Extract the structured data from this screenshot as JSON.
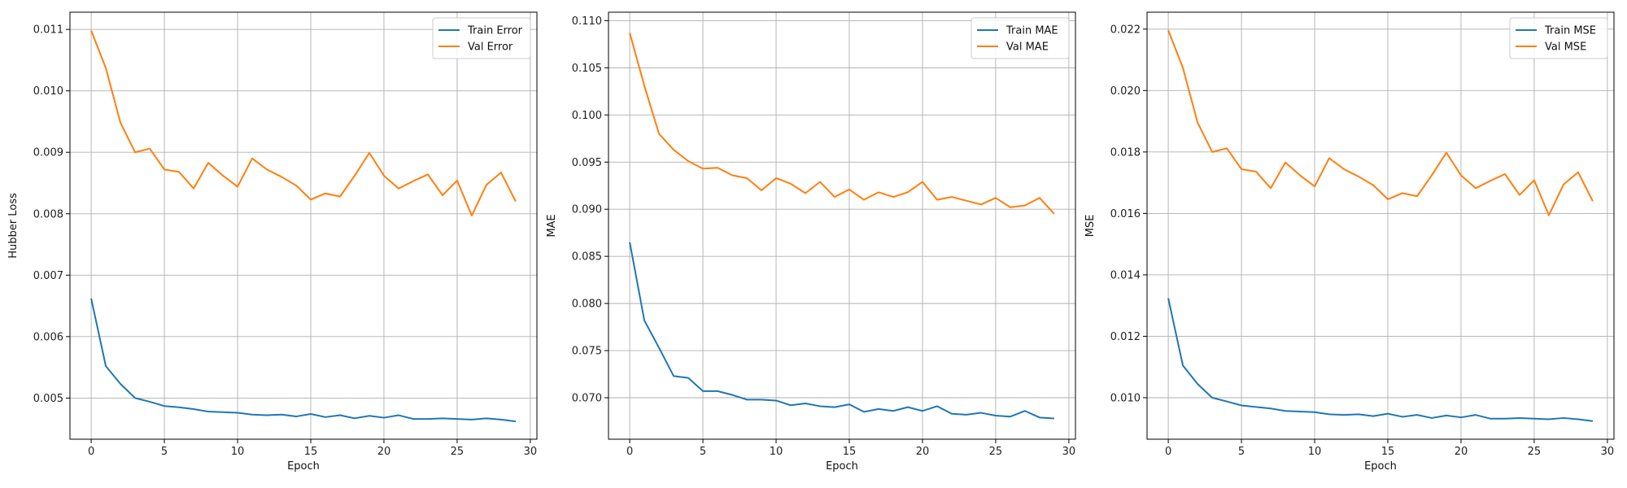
{
  "chart_data": [
    {
      "type": "line",
      "xlabel": "Epoch",
      "ylabel": "Hubber Loss",
      "x": [
        0,
        1,
        2,
        3,
        4,
        5,
        6,
        7,
        8,
        9,
        10,
        11,
        12,
        13,
        14,
        15,
        16,
        17,
        18,
        19,
        20,
        21,
        22,
        23,
        24,
        25,
        26,
        27,
        28,
        29
      ],
      "xlim": [
        -1.45,
        30.45
      ],
      "xticks": [
        0,
        5,
        10,
        15,
        20,
        25,
        30
      ],
      "ylim": [
        0.00433,
        0.01128
      ],
      "yticks": [
        0.005,
        0.006,
        0.007,
        0.008,
        0.009,
        0.01,
        0.011
      ],
      "ytick_labels": [
        "0.005",
        "0.006",
        "0.007",
        "0.008",
        "0.009",
        "0.010",
        "0.011"
      ],
      "grid": true,
      "legend_position": "top-right",
      "series": [
        {
          "name": "Train Error",
          "color": "#1f77b4",
          "values": [
            0.00662,
            0.00552,
            0.00523,
            0.005,
            0.00494,
            0.00487,
            0.00485,
            0.00482,
            0.00478,
            0.00477,
            0.00476,
            0.00473,
            0.00472,
            0.00473,
            0.0047,
            0.00474,
            0.00469,
            0.00472,
            0.00467,
            0.00471,
            0.00468,
            0.00472,
            0.00466,
            0.00466,
            0.00467,
            0.00466,
            0.00465,
            0.00467,
            0.00465,
            0.00462
          ]
        },
        {
          "name": "Val Error",
          "color": "#ff7f0e",
          "values": [
            0.01098,
            0.01037,
            0.00948,
            0.009,
            0.00906,
            0.00872,
            0.00868,
            0.00841,
            0.00883,
            0.00862,
            0.00844,
            0.0089,
            0.00872,
            0.0086,
            0.00846,
            0.00823,
            0.00833,
            0.00828,
            0.00862,
            0.00899,
            0.00862,
            0.00841,
            0.00853,
            0.00864,
            0.0083,
            0.00854,
            0.00797,
            0.00847,
            0.00867,
            0.0082
          ]
        }
      ]
    },
    {
      "type": "line",
      "xlabel": "Epoch",
      "ylabel": "MAE",
      "x": [
        0,
        1,
        2,
        3,
        4,
        5,
        6,
        7,
        8,
        9,
        10,
        11,
        12,
        13,
        14,
        15,
        16,
        17,
        18,
        19,
        20,
        21,
        22,
        23,
        24,
        25,
        26,
        27,
        28,
        29
      ],
      "xlim": [
        -1.45,
        30.45
      ],
      "xticks": [
        0,
        5,
        10,
        15,
        20,
        25,
        30
      ],
      "ylim": [
        0.0656,
        0.1109
      ],
      "yticks": [
        0.07,
        0.075,
        0.08,
        0.085,
        0.09,
        0.095,
        0.1,
        0.105,
        0.11
      ],
      "ytick_labels": [
        "0.070",
        "0.075",
        "0.080",
        "0.085",
        "0.090",
        "0.095",
        "0.100",
        "0.105",
        "0.110"
      ],
      "grid": true,
      "legend_position": "top-right",
      "series": [
        {
          "name": "Train MAE",
          "color": "#1f77b4",
          "values": [
            0.0865,
            0.0782,
            0.0753,
            0.0723,
            0.0721,
            0.0707,
            0.0707,
            0.0703,
            0.0698,
            0.0698,
            0.0697,
            0.0692,
            0.0694,
            0.0691,
            0.069,
            0.0693,
            0.0685,
            0.0688,
            0.0686,
            0.069,
            0.0686,
            0.0691,
            0.0683,
            0.0682,
            0.0684,
            0.0681,
            0.068,
            0.0686,
            0.0679,
            0.0678
          ]
        },
        {
          "name": "Val MAE",
          "color": "#ff7f0e",
          "values": [
            0.1087,
            0.1031,
            0.098,
            0.0963,
            0.0951,
            0.0943,
            0.0944,
            0.0936,
            0.0933,
            0.092,
            0.0933,
            0.0927,
            0.0917,
            0.0929,
            0.0913,
            0.0921,
            0.091,
            0.0918,
            0.0913,
            0.0918,
            0.0929,
            0.091,
            0.0913,
            0.0909,
            0.0905,
            0.0912,
            0.0902,
            0.0904,
            0.0912,
            0.0895
          ]
        }
      ]
    },
    {
      "type": "line",
      "xlabel": "Epoch",
      "ylabel": "MSE",
      "x": [
        0,
        1,
        2,
        3,
        4,
        5,
        6,
        7,
        8,
        9,
        10,
        11,
        12,
        13,
        14,
        15,
        16,
        17,
        18,
        19,
        20,
        21,
        22,
        23,
        24,
        25,
        26,
        27,
        28,
        29
      ],
      "xlim": [
        -1.45,
        30.45
      ],
      "xticks": [
        0,
        5,
        10,
        15,
        20,
        25,
        30
      ],
      "ylim": [
        0.00865,
        0.02255
      ],
      "yticks": [
        0.01,
        0.012,
        0.014,
        0.016,
        0.018,
        0.02,
        0.022
      ],
      "ytick_labels": [
        "0.010",
        "0.012",
        "0.014",
        "0.016",
        "0.018",
        "0.020",
        "0.022"
      ],
      "grid": true,
      "legend_position": "top-right",
      "series": [
        {
          "name": "Train MSE",
          "color": "#1f77b4",
          "values": [
            0.01324,
            0.01105,
            0.01045,
            0.01,
            0.00988,
            0.00975,
            0.0097,
            0.00965,
            0.00957,
            0.00955,
            0.00953,
            0.00946,
            0.00944,
            0.00946,
            0.0094,
            0.00948,
            0.00938,
            0.00944,
            0.00934,
            0.00942,
            0.00936,
            0.00944,
            0.00932,
            0.00932,
            0.00934,
            0.00932,
            0.0093,
            0.00934,
            0.0093,
            0.00924
          ]
        },
        {
          "name": "Val MSE",
          "color": "#ff7f0e",
          "values": [
            0.02196,
            0.02074,
            0.01896,
            0.018,
            0.01812,
            0.01744,
            0.01736,
            0.01682,
            0.01766,
            0.01724,
            0.01688,
            0.0178,
            0.01744,
            0.0172,
            0.01692,
            0.01646,
            0.01666,
            0.01656,
            0.01724,
            0.01798,
            0.01724,
            0.01682,
            0.01706,
            0.01728,
            0.0166,
            0.01708,
            0.01594,
            0.01694,
            0.01734,
            0.0164
          ]
        }
      ]
    }
  ]
}
